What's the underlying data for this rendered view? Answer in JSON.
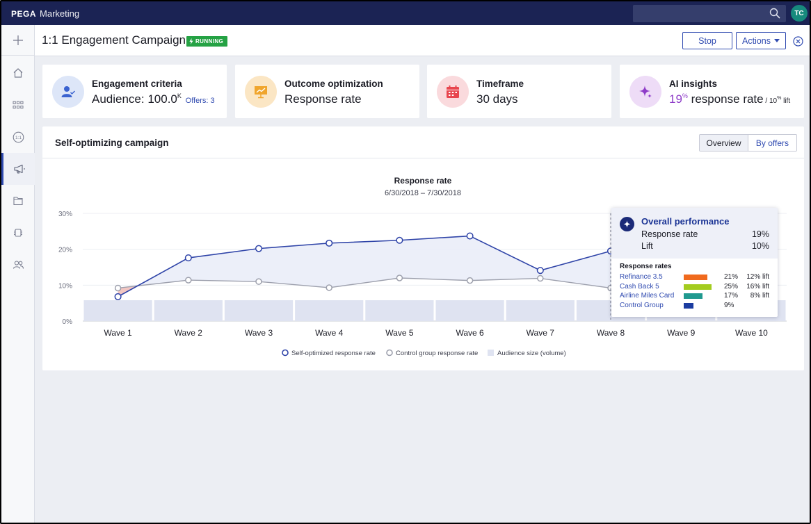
{
  "app": {
    "brand": "PEGA",
    "product": "Marketing",
    "user_initials": "TC"
  },
  "header": {
    "title": "1:1 Engagement Campaign",
    "status": "RUNNING",
    "stop_label": "Stop",
    "actions_label": "Actions"
  },
  "nav": {
    "items": [
      "home-icon",
      "grid-icon",
      "one-to-one-icon",
      "campaign-icon",
      "folders-icon",
      "chip-icon",
      "people-icon"
    ],
    "active": "campaign-icon",
    "one_to_one_text": "1:1"
  },
  "cards": {
    "engagement": {
      "title": "Engagement criteria",
      "value": "Audience: 100.0",
      "value_sup": "K",
      "link": "Offers: 3"
    },
    "outcome": {
      "title": "Outcome optimization",
      "value": "Response rate"
    },
    "timeframe": {
      "title": "Timeframe",
      "value": "30 days"
    },
    "insights": {
      "title": "AI insights",
      "value_pct": "19",
      "value_pct_sup": "%",
      "value_text": " response rate",
      "lift_text": " / 10",
      "lift_sup": "%",
      "lift_suffix": " lift"
    }
  },
  "panel": {
    "title": "Self-optimizing campaign",
    "tabs": [
      "Overview",
      "By offers"
    ],
    "selected_tab": "Overview"
  },
  "chart_data": {
    "type": "line",
    "title": "Response rate",
    "subtitle": "6/30/2018 – 7/30/2018",
    "categories": [
      "Wave 1",
      "Wave 2",
      "Wave 3",
      "Wave 4",
      "Wave 5",
      "Wave 6",
      "Wave 7",
      "Wave 8",
      "Wave 9",
      "Wave 10"
    ],
    "y_ticks": [
      "0%",
      "10%",
      "20%",
      "30%"
    ],
    "ylim": [
      0,
      30
    ],
    "series": [
      {
        "name": "Self-optimized response rate",
        "color": "#2f44a8",
        "values": [
          6.8,
          17.6,
          20.2,
          21.7,
          22.5,
          23.7,
          14.1,
          19.5,
          null,
          null
        ]
      },
      {
        "name": "Control group response rate",
        "color": "#9da0ad",
        "values": [
          9.2,
          11.4,
          11.0,
          9.3,
          12.0,
          11.3,
          11.9,
          9.2,
          null,
          null
        ]
      }
    ],
    "audience_label": "Audience size (volume)",
    "audience_color": "#dfe3f1",
    "legend_position": "bottom",
    "grid": true
  },
  "tooltip": {
    "title": "Overall performance",
    "rows": [
      {
        "label": "Response rate",
        "value": "19%"
      },
      {
        "label": "Lift",
        "value": "10%"
      }
    ],
    "subtitle": "Response rates",
    "items": [
      {
        "name": "Refinance 3.5",
        "pct": "21%",
        "lift": "12% lift",
        "value": 21,
        "color": "#f06a1d"
      },
      {
        "name": "Cash Back 5",
        "pct": "25%",
        "lift": "16% lift",
        "value": 25,
        "color": "#a3cc1f"
      },
      {
        "name": "Airline Miles Card",
        "pct": "17%",
        "lift": "8% lift",
        "value": 17,
        "color": "#20998f"
      },
      {
        "name": "Control Group",
        "pct": "9%",
        "lift": "",
        "value": 9,
        "color": "#1b3ca0"
      }
    ]
  }
}
